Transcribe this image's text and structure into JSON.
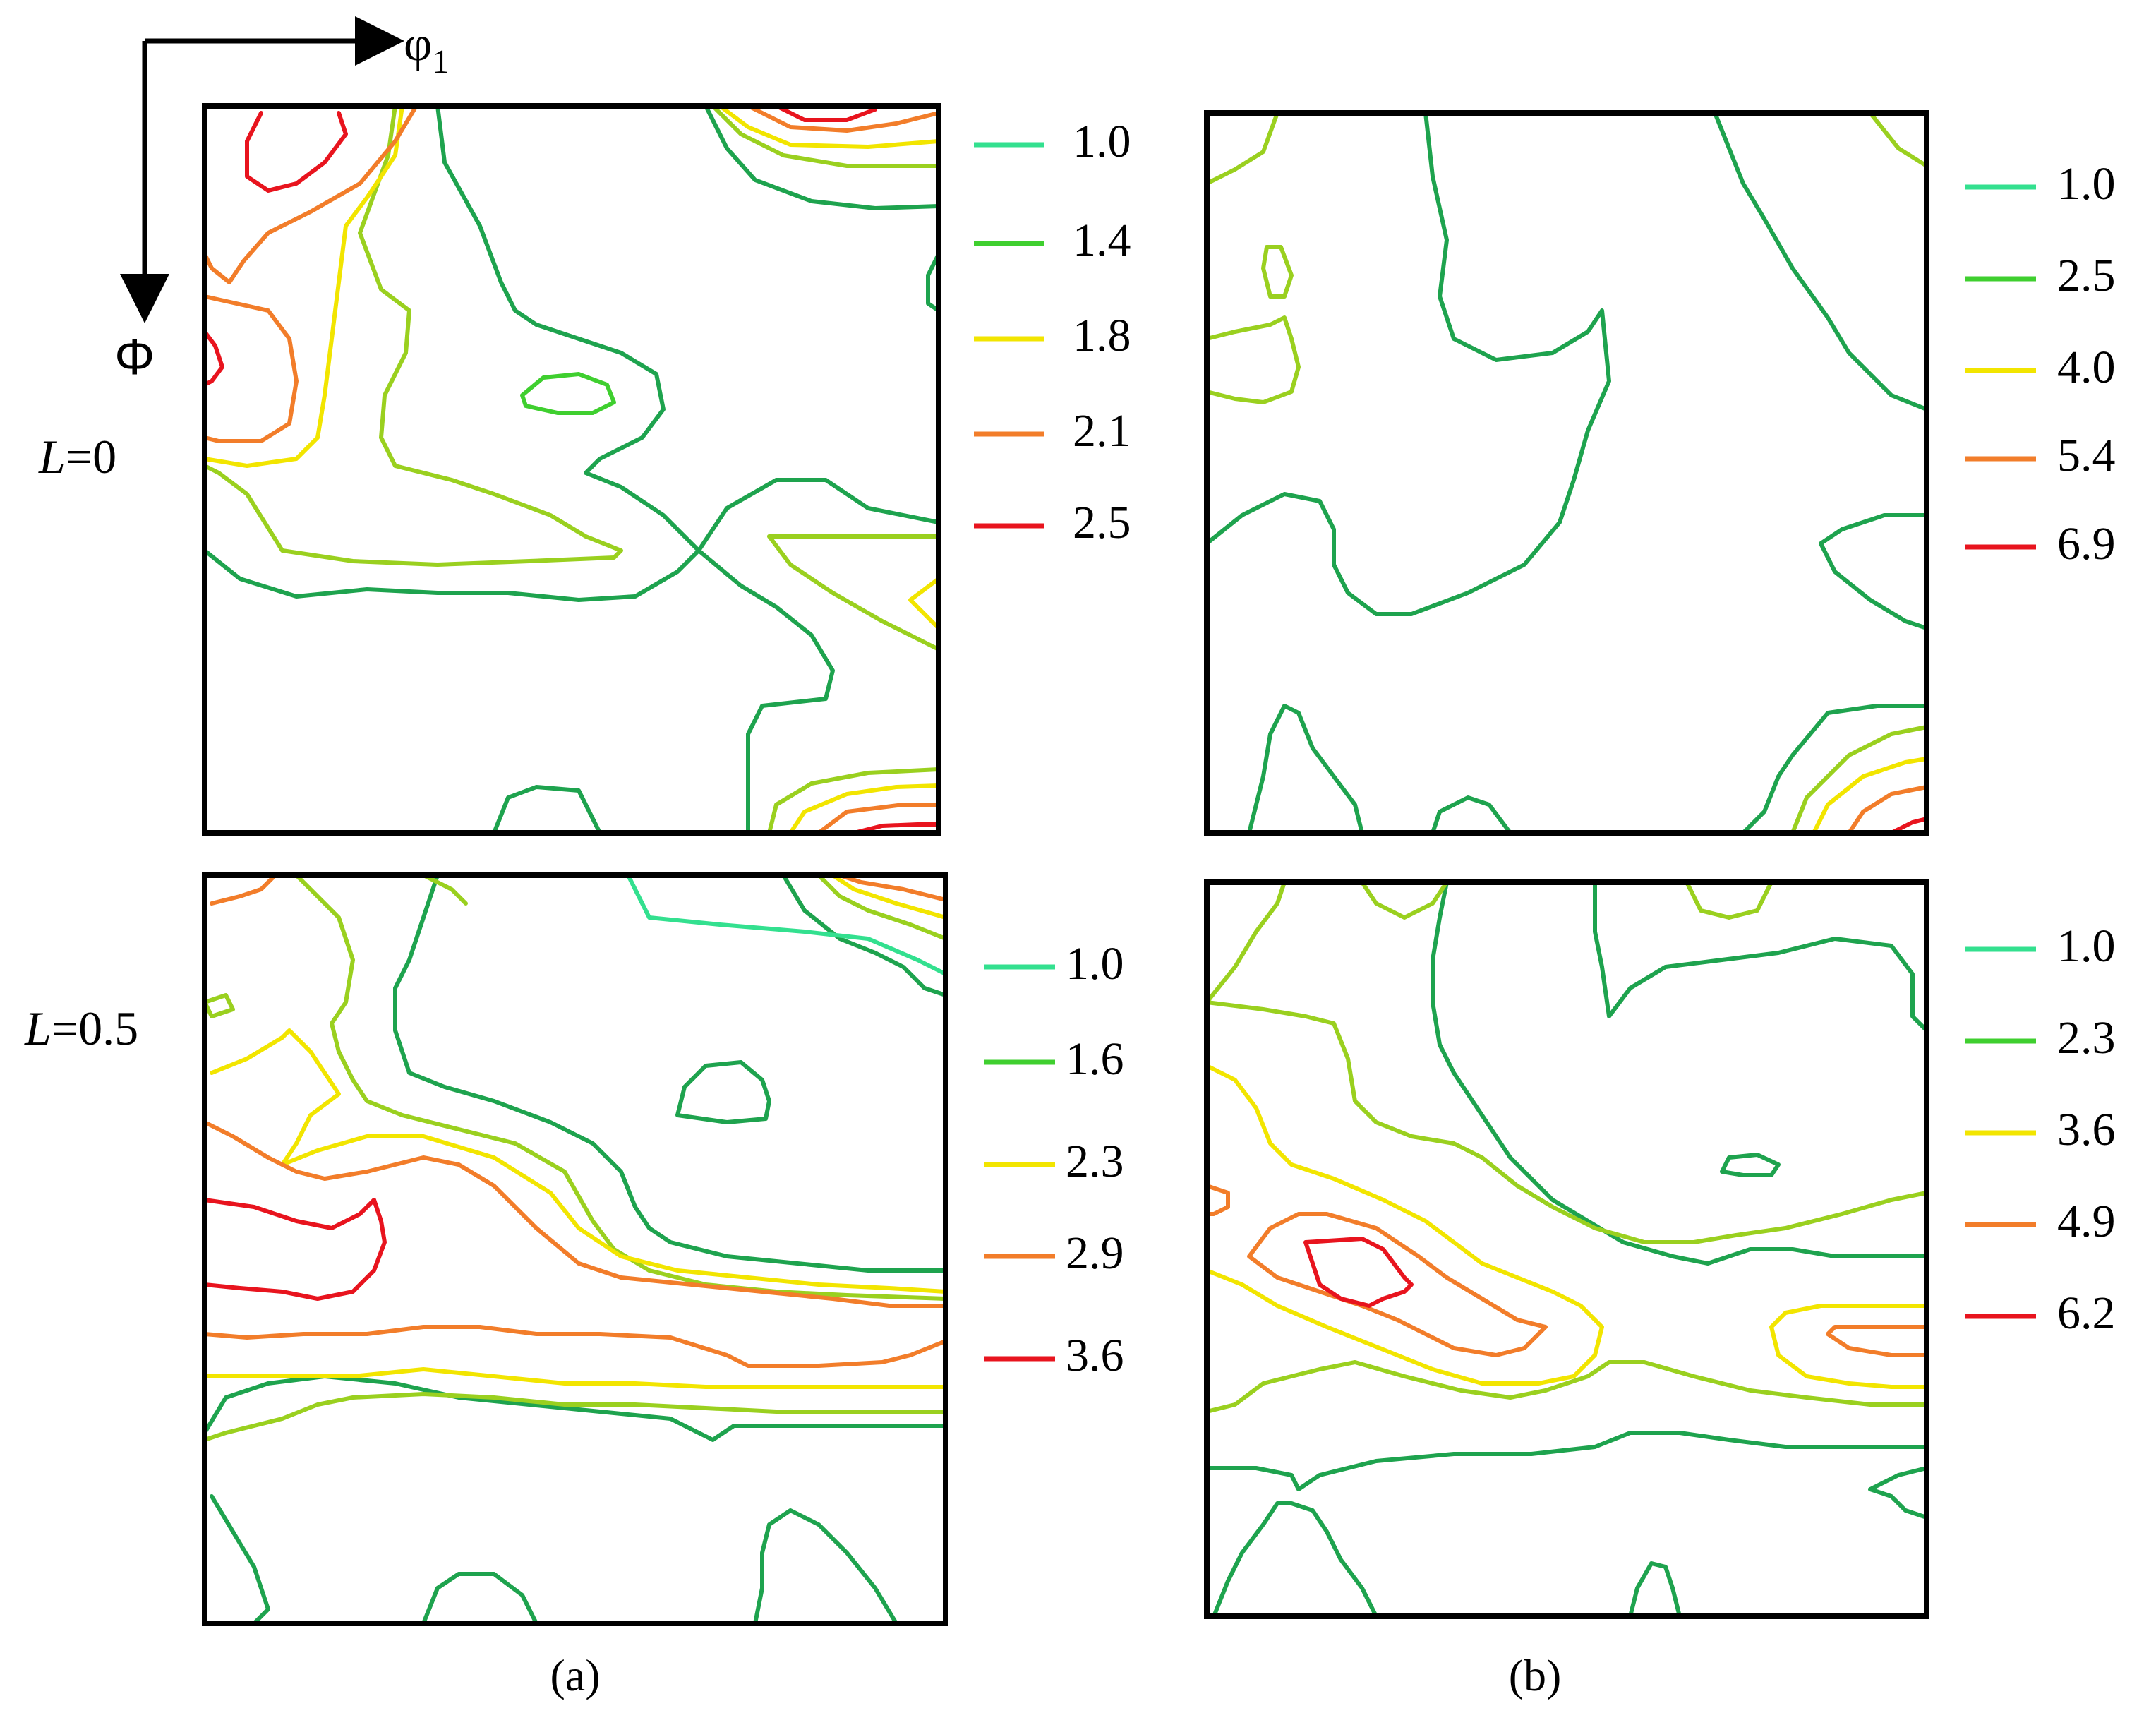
{
  "axes": {
    "horizontal_symbol": "φ",
    "horizontal_subscript": "1",
    "vertical_symbol": "Φ"
  },
  "rows": [
    {
      "label_var": "L",
      "label_value": "=0"
    },
    {
      "label_var": "L",
      "label_value": "=0.5"
    }
  ],
  "columns": [
    {
      "caption": "(a)"
    },
    {
      "caption": "(b)"
    }
  ],
  "level_colors": [
    "#33e08f",
    "#3fcf2f",
    "#f2e500",
    "#f27d2a",
    "#e8141e"
  ],
  "plot_colors": {
    "outer_contour": "#1ea34e",
    "inner_contour": "#9ad01f",
    "frame": "#000000"
  },
  "panels": [
    {
      "id": "a-top",
      "levels": [
        "1.0",
        "1.4",
        "1.8",
        "2.1",
        "2.5"
      ]
    },
    {
      "id": "b-top",
      "levels": [
        "1.0",
        "2.5",
        "4.0",
        "5.4",
        "6.9"
      ]
    },
    {
      "id": "a-bottom",
      "levels": [
        "1.0",
        "1.6",
        "2.3",
        "2.9",
        "3.6"
      ]
    },
    {
      "id": "b-bottom",
      "levels": [
        "1.0",
        "2.3",
        "3.6",
        "4.9",
        "6.2"
      ]
    }
  ]
}
